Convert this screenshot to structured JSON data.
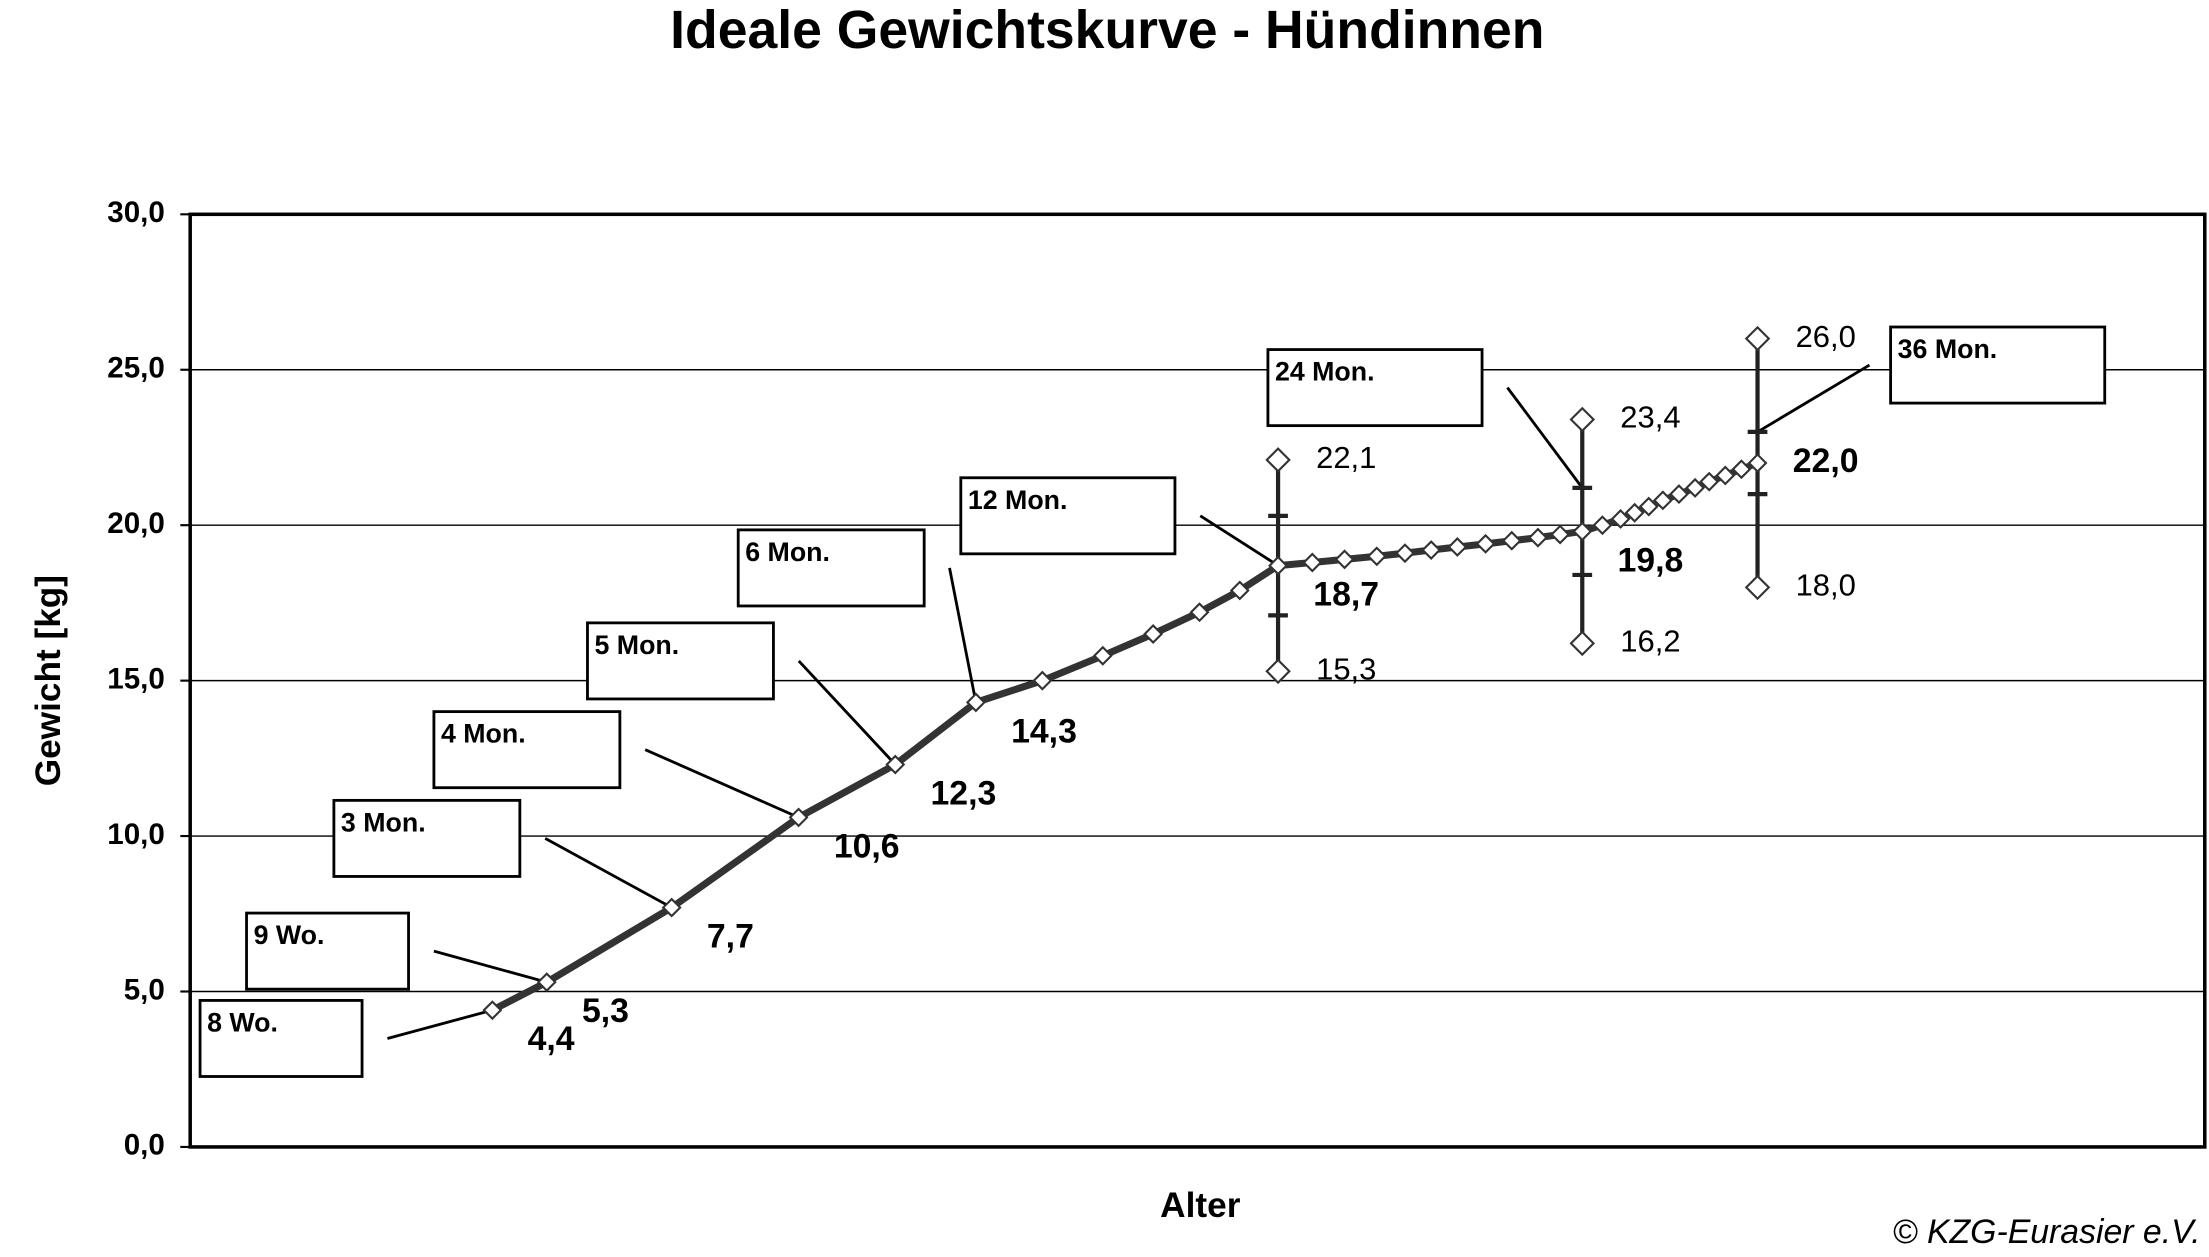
{
  "chart_data": {
    "type": "line",
    "title": "Ideale Gewichtskurve - Hündinnen",
    "x_label": "Alter",
    "y_label": "Gewicht [kg]",
    "credit": "© KZG-Eurasier e.V.",
    "xlim": [
      0,
      100
    ],
    "ylim": [
      0,
      30
    ],
    "yticks": [
      {
        "value": 0,
        "label": "0,0"
      },
      {
        "value": 5,
        "label": "5,0"
      },
      {
        "value": 10,
        "label": "10,0"
      },
      {
        "value": 15,
        "label": "15,0"
      },
      {
        "value": 20,
        "label": "20,0"
      },
      {
        "value": 25,
        "label": "25,0"
      },
      {
        "value": 30,
        "label": "30,0"
      }
    ],
    "grid": true,
    "color": "#333333",
    "x": [
      15.0,
      17.7,
      23.9,
      30.2,
      35.0,
      39.0,
      42.3,
      45.3,
      47.8,
      50.1,
      52.1,
      54.0,
      55.7,
      57.3,
      58.9,
      60.3,
      61.6,
      62.9,
      64.3,
      65.6,
      66.9,
      68.0,
      69.1,
      70.1,
      71.0,
      71.7,
      72.4,
      73.1,
      73.9,
      74.7,
      75.4,
      76.2,
      77.0,
      77.8
    ],
    "values": [
      4.4,
      5.3,
      7.7,
      10.6,
      12.3,
      14.3,
      15.0,
      15.8,
      16.5,
      17.2,
      17.9,
      18.7,
      18.8,
      18.9,
      19.0,
      19.1,
      19.2,
      19.3,
      19.4,
      19.5,
      19.6,
      19.7,
      19.8,
      20.0,
      20.2,
      20.4,
      20.6,
      20.8,
      21.0,
      21.2,
      21.4,
      21.6,
      21.8,
      22.0
    ],
    "value_labels": [
      "4,4",
      "5,3",
      "7,7",
      "10,6",
      "12,3",
      "14,3",
      null,
      null,
      null,
      null,
      null,
      "18,7",
      null,
      null,
      null,
      null,
      null,
      null,
      null,
      null,
      null,
      null,
      "19,8",
      null,
      null,
      null,
      null,
      null,
      null,
      null,
      null,
      null,
      null,
      "22,0"
    ],
    "annotations": [
      "8 Wo.",
      "9 Wo.",
      "3 Mon.",
      "4 Mon.",
      "5 Mon.",
      "6 Mon.",
      null,
      null,
      null,
      null,
      null,
      "12 Mon.",
      null,
      null,
      null,
      null,
      null,
      null,
      null,
      null,
      null,
      null,
      "24 Mon.",
      null,
      null,
      null,
      null,
      null,
      null,
      null,
      null,
      null,
      null,
      "36 Mon."
    ],
    "ranges": [
      {
        "x": 54.0,
        "min": 15.3,
        "max": 22.1,
        "low": 17.1,
        "high": 20.3,
        "min_label": "15,3",
        "max_label": "22,1"
      },
      {
        "x": 69.1,
        "min": 16.2,
        "max": 23.4,
        "low": 18.4,
        "high": 21.2,
        "min_label": "16,2",
        "max_label": "23,4"
      },
      {
        "x": 77.8,
        "min": 18.0,
        "max": 26.0,
        "low": 21.0,
        "high": 23.0,
        "min_label": "18,0",
        "max_label": "26,0"
      }
    ]
  }
}
